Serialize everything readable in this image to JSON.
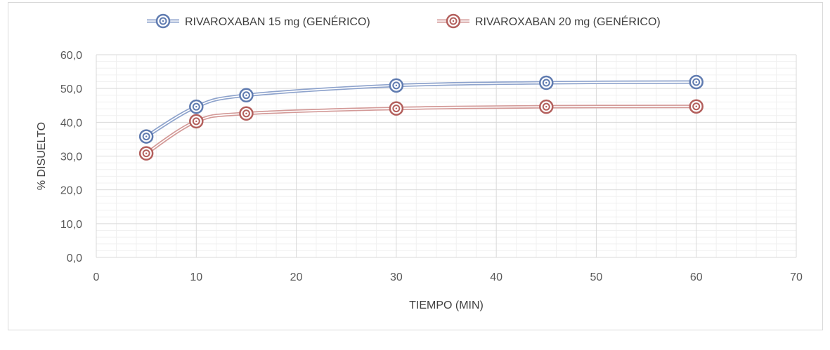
{
  "chart_data": {
    "type": "scatter",
    "xlabel": "TIEMPO (MIN)",
    "ylabel": "% DISUELTO",
    "xlim": [
      0,
      70
    ],
    "ylim": [
      0,
      60
    ],
    "xticks": [
      0,
      10,
      20,
      30,
      40,
      50,
      60,
      70
    ],
    "yticks": [
      0,
      10,
      20,
      30,
      40,
      50,
      60
    ],
    "xtick_labels": [
      "0",
      "10",
      "20",
      "30",
      "40",
      "50",
      "60",
      "70"
    ],
    "ytick_labels": [
      "0,0",
      "10,0",
      "20,0",
      "30,0",
      "40,0",
      "50,0",
      "60,0"
    ],
    "grid": true,
    "minor_grid": true,
    "legend_position": "top",
    "smooth_lines": true,
    "series": [
      {
        "name": "RIVAROXABAN 15 mg (GENÉRICO)",
        "color": "#8ea3cc",
        "marker_color": "#5f7bb0",
        "x": [
          5,
          10,
          15,
          30,
          45,
          60
        ],
        "y": [
          35.8,
          44.6,
          48.0,
          50.9,
          51.7,
          51.9
        ]
      },
      {
        "name": "RIVAROXABAN 20 mg (GENÉRICO)",
        "color": "#d39a98",
        "marker_color": "#b35f5c",
        "x": [
          5,
          10,
          15,
          30,
          45,
          60
        ],
        "y": [
          30.8,
          40.3,
          42.6,
          44.1,
          44.6,
          44.7
        ]
      }
    ]
  }
}
